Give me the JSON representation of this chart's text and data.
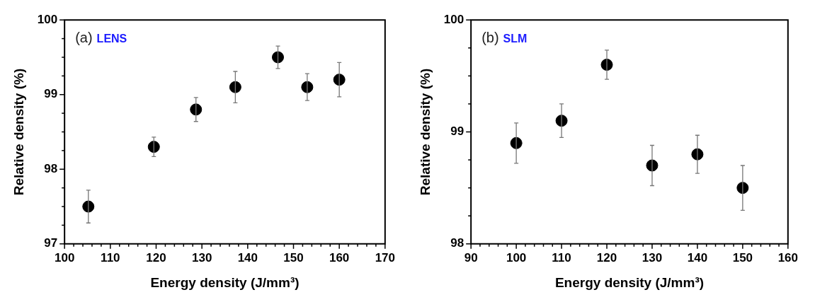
{
  "chart_data": [
    {
      "type": "scatter",
      "xlabel": "Energy density (J/mm³)",
      "ylabel": "Relative density (%)",
      "annotations": [
        "(a)",
        "LENS"
      ],
      "marker": "circle",
      "grid": false,
      "legend": false,
      "x": [
        105.2,
        119.5,
        128.7,
        137.3,
        146.6,
        153,
        160
      ],
      "series": [
        {
          "color": "#000000",
          "values": [
            97.5,
            98.3,
            98.8,
            99.1,
            99.5,
            99.1,
            99.2
          ],
          "errors": [
            0.22,
            0.13,
            0.16,
            0.21,
            0.15,
            0.18,
            0.23
          ]
        }
      ],
      "xlim": [
        100,
        170
      ],
      "xticks": [
        100,
        {
          "value": 102,
          "label": null
        },
        {
          "value": 104,
          "label": null
        },
        {
          "value": 106,
          "label": null
        },
        {
          "value": 108,
          "label": null
        },
        110,
        {
          "value": 112,
          "label": null
        },
        {
          "value": 114,
          "label": null
        },
        {
          "value": 116,
          "label": null
        },
        {
          "value": 118,
          "label": null
        },
        120,
        {
          "value": 122,
          "label": null
        },
        {
          "value": 124,
          "label": null
        },
        {
          "value": 126,
          "label": null
        },
        {
          "value": 128,
          "label": null
        },
        130,
        {
          "value": 132,
          "label": null
        },
        {
          "value": 134,
          "label": null
        },
        {
          "value": 136,
          "label": null
        },
        {
          "value": 138,
          "label": null
        },
        140,
        {
          "value": 142,
          "label": null
        },
        {
          "value": 144,
          "label": null
        },
        {
          "value": 146,
          "label": null
        },
        {
          "value": 148,
          "label": null
        },
        150,
        {
          "value": 152,
          "label": null
        },
        {
          "value": 154,
          "label": null
        },
        {
          "value": 156,
          "label": null
        },
        {
          "value": 158,
          "label": null
        },
        160,
        {
          "value": 162,
          "label": null
        },
        {
          "value": 164,
          "label": null
        },
        {
          "value": 166,
          "label": null
        },
        {
          "value": 168,
          "label": null
        },
        170
      ],
      "ylim": [
        97,
        100
      ],
      "yticks": [
        97,
        {
          "value": 97.25,
          "label": null
        },
        {
          "value": 97.5,
          "label": null
        },
        {
          "value": 97.75,
          "label": null
        },
        98,
        {
          "value": 98.25,
          "label": null
        },
        {
          "value": 98.5,
          "label": null
        },
        {
          "value": 98.75,
          "label": null
        },
        99,
        {
          "value": 99.25,
          "label": null
        },
        {
          "value": 99.5,
          "label": null
        },
        {
          "value": 99.75,
          "label": null
        },
        100
      ]
    },
    {
      "type": "scatter",
      "xlabel": "Energy density (J/mm³)",
      "ylabel": "Relative density (%)",
      "annotations": [
        "(b)",
        "SLM"
      ],
      "marker": "circle",
      "grid": false,
      "legend": false,
      "x": [
        100,
        110,
        120,
        130,
        140,
        150
      ],
      "series": [
        {
          "color": "#000000",
          "values": [
            98.9,
            99.1,
            99.6,
            98.7,
            98.8,
            98.5
          ],
          "errors": [
            0.18,
            0.15,
            0.13,
            0.18,
            0.17,
            0.2
          ]
        }
      ],
      "xlim": [
        90,
        160
      ],
      "xticks": [
        90,
        {
          "value": 92,
          "label": null
        },
        {
          "value": 94,
          "label": null
        },
        {
          "value": 96,
          "label": null
        },
        {
          "value": 98,
          "label": null
        },
        100,
        {
          "value": 102,
          "label": null
        },
        {
          "value": 104,
          "label": null
        },
        {
          "value": 106,
          "label": null
        },
        {
          "value": 108,
          "label": null
        },
        110,
        {
          "value": 112,
          "label": null
        },
        {
          "value": 114,
          "label": null
        },
        {
          "value": 116,
          "label": null
        },
        {
          "value": 118,
          "label": null
        },
        120,
        {
          "value": 122,
          "label": null
        },
        {
          "value": 124,
          "label": null
        },
        {
          "value": 126,
          "label": null
        },
        {
          "value": 128,
          "label": null
        },
        130,
        {
          "value": 132,
          "label": null
        },
        {
          "value": 134,
          "label": null
        },
        {
          "value": 136,
          "label": null
        },
        {
          "value": 138,
          "label": null
        },
        140,
        {
          "value": 142,
          "label": null
        },
        {
          "value": 144,
          "label": null
        },
        {
          "value": 146,
          "label": null
        },
        {
          "value": 148,
          "label": null
        },
        150,
        {
          "value": 152,
          "label": null
        },
        {
          "value": 154,
          "label": null
        },
        {
          "value": 156,
          "label": null
        },
        {
          "value": 158,
          "label": null
        },
        160
      ],
      "ylim": [
        98,
        100
      ],
      "yticks": [
        98,
        {
          "value": 98.25,
          "label": null
        },
        {
          "value": 98.5,
          "label": null
        },
        {
          "value": 98.75,
          "label": null
        },
        99,
        {
          "value": 99.25,
          "label": null
        },
        {
          "value": 99.5,
          "label": null
        },
        {
          "value": 99.75,
          "label": null
        },
        100
      ]
    }
  ]
}
